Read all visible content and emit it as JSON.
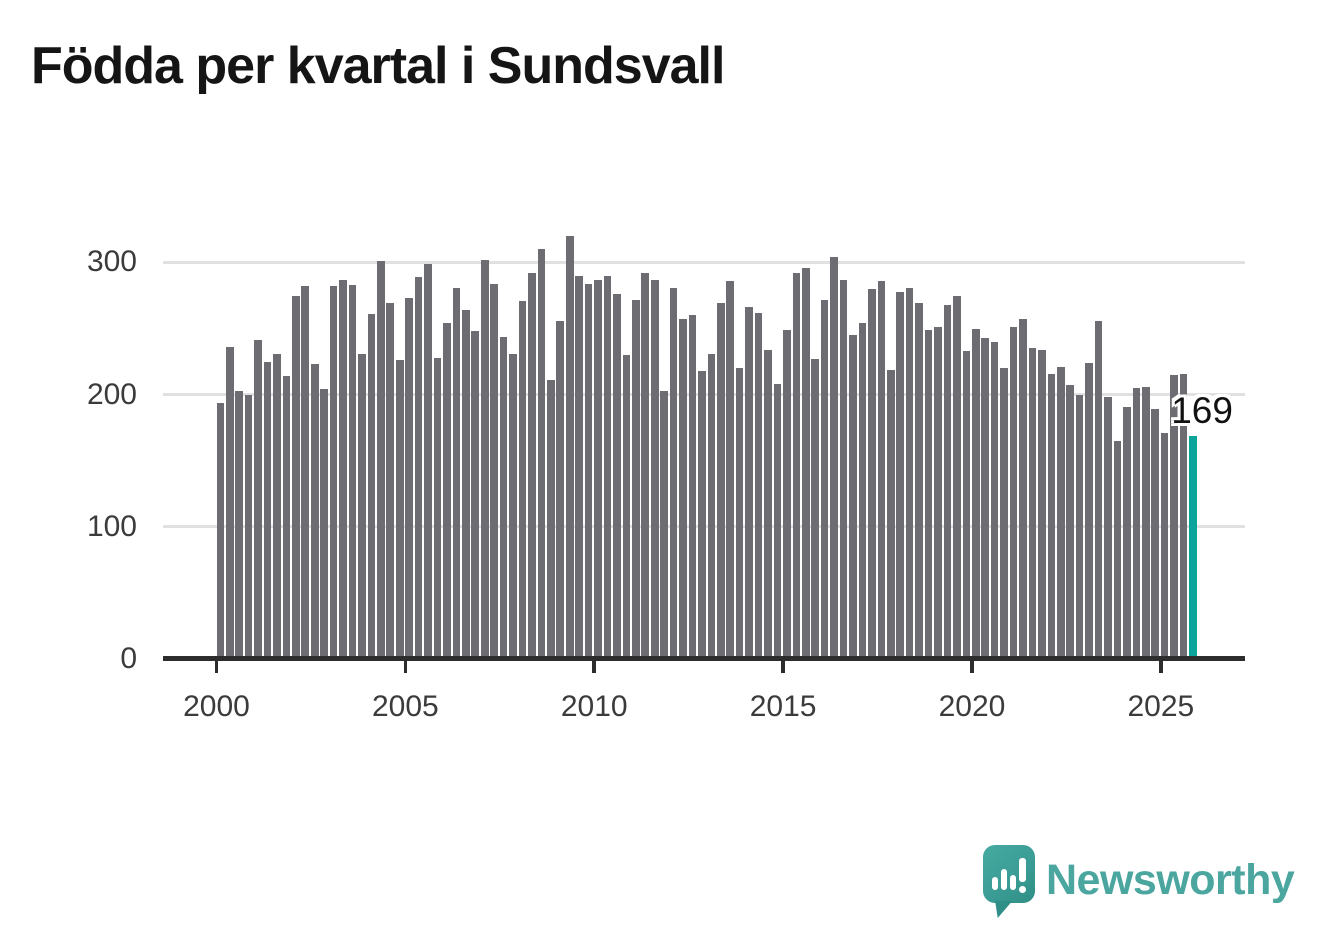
{
  "title": "Födda per kvartal i Sundsvall",
  "branding": {
    "logo_text": "Newsworthy",
    "brand_color": "#3b9d95"
  },
  "chart_data": {
    "type": "bar",
    "title": "Födda per kvartal i Sundsvall",
    "frequency": "quarterly",
    "x_start": "2000-Q1",
    "x_end": "2025-Q4",
    "values": [
      194,
      236,
      203,
      200,
      241,
      225,
      231,
      214,
      275,
      282,
      223,
      204,
      282,
      287,
      283,
      231,
      261,
      301,
      269,
      226,
      273,
      289,
      299,
      228,
      254,
      281,
      264,
      248,
      302,
      284,
      244,
      231,
      271,
      292,
      310,
      211,
      256,
      320,
      290,
      284,
      287,
      290,
      276,
      230,
      272,
      292,
      287,
      203,
      281,
      257,
      260,
      218,
      231,
      269,
      286,
      220,
      266,
      262,
      234,
      208,
      249,
      292,
      296,
      227,
      272,
      304,
      287,
      245,
      254,
      280,
      286,
      219,
      278,
      281,
      269,
      249,
      251,
      268,
      275,
      233,
      250,
      243,
      240,
      220,
      251,
      257,
      235,
      234,
      216,
      221,
      207,
      200,
      224,
      256,
      198,
      165,
      191,
      205,
      206,
      189,
      171,
      215,
      216,
      169
    ],
    "x_ticks": [
      "2000",
      "2005",
      "2010",
      "2015",
      "2020",
      "2025"
    ],
    "y_ticks": [
      "0",
      "100",
      "200",
      "300"
    ],
    "ylim": [
      0,
      330
    ],
    "grid": "horizontal",
    "legend": "none",
    "bar_color": "#6c6c72",
    "highlight_color": "#0ba49b",
    "highlight_index": 103,
    "highlight_label": "169"
  }
}
